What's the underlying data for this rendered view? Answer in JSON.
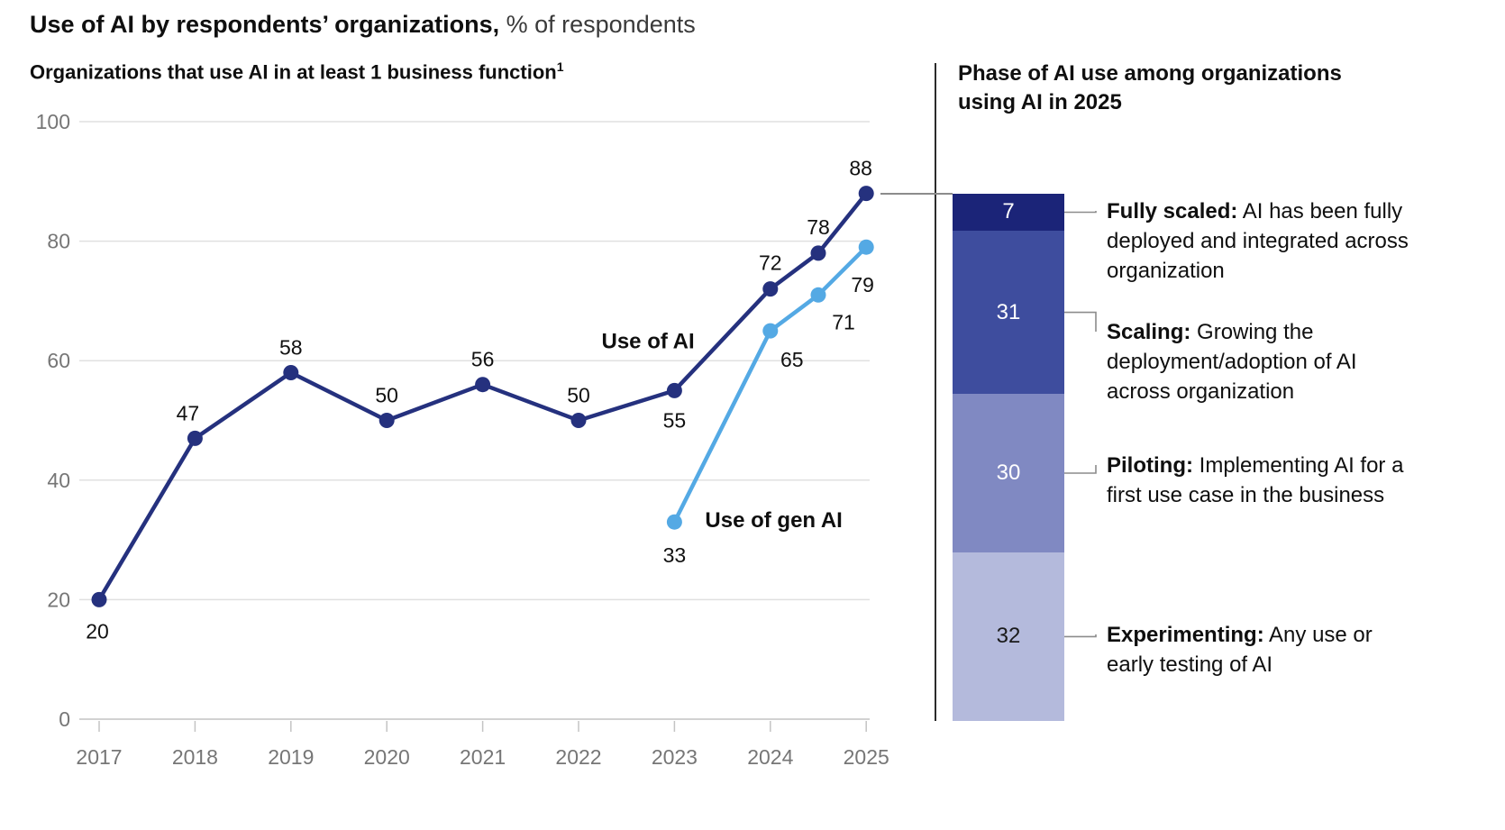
{
  "page": {
    "title_bold": "Use of AI by respondents’ organizations,",
    "title_regular": " % of respondents"
  },
  "line_section": {
    "subtitle": "Organizations that use AI in at least 1 business function",
    "subtitle_superscript": "1"
  },
  "phase_section": {
    "heading": "Phase of AI use among organizations using AI in 2025"
  },
  "chart_data": {
    "type": "line",
    "title": "Use of AI by respondents’ organizations, % of respondents",
    "subtitle": "Organizations that use AI in at least 1 business function",
    "x_ticks": [
      2017,
      2018,
      2019,
      2020,
      2021,
      2022,
      2023,
      2024,
      2025
    ],
    "y_ticks": [
      0,
      20,
      40,
      60,
      80,
      100
    ],
    "ylim": [
      0,
      100
    ],
    "grid": "horizontal",
    "legend_position": "inline-annotations",
    "series": [
      {
        "name": "Use of AI",
        "color": "#25317E",
        "points": [
          {
            "x": 2017,
            "v": 20,
            "dx": -2,
            "dy": 43
          },
          {
            "x": 2018,
            "v": 47,
            "dx": -8,
            "dy": -20
          },
          {
            "x": 2019,
            "v": 58,
            "dx": 0,
            "dy": -20
          },
          {
            "x": 2020,
            "v": 50,
            "dx": 0,
            "dy": -20
          },
          {
            "x": 2021,
            "v": 56,
            "dx": 0,
            "dy": -20
          },
          {
            "x": 2022,
            "v": 50,
            "dx": 0,
            "dy": -20
          },
          {
            "x": 2023,
            "v": 55,
            "dx": 0,
            "dy": 41
          },
          {
            "x": 2024,
            "v": 72,
            "dx": 0,
            "dy": -21
          },
          {
            "x": 2024.5,
            "v": 78,
            "dx": 0,
            "dy": -21
          },
          {
            "x": 2025,
            "v": 88,
            "dx": -6,
            "dy": -20
          }
        ]
      },
      {
        "name": "Use of gen AI",
        "color": "#54A9E4",
        "points": [
          {
            "x": 2023,
            "v": 33,
            "dx": 0,
            "dy": 45
          },
          {
            "x": 2024,
            "v": 65,
            "dx": 24,
            "dy": 40
          },
          {
            "x": 2024.5,
            "v": 71,
            "dx": 28,
            "dy": 38
          },
          {
            "x": 2025,
            "v": 79,
            "dx": -4,
            "dy": 50
          }
        ]
      }
    ],
    "annotations": [
      {
        "text": "Use of AI",
        "x": 2022.24,
        "y": 62.1
      },
      {
        "text": "Use of gen AI",
        "x": 2023.32,
        "y": 32.1
      }
    ],
    "stacked_bar": {
      "title": "Phase of AI use among organizations using AI in 2025",
      "total": 100,
      "segments": [
        {
          "value": 7,
          "phase": "Fully scaled",
          "term": "Fully scaled:",
          "description": " AI has been fully deployed and integrated across organization",
          "color": "#1B2478",
          "text_color": "#FFFFFF"
        },
        {
          "value": 31,
          "phase": "Scaling",
          "term": "Scaling:",
          "description": " Growing the deployment/adoption of AI across organization",
          "color": "#3E4D9E",
          "text_color": "#FFFFFF"
        },
        {
          "value": 30,
          "phase": "Piloting",
          "term": "Piloting:",
          "description": " Implementing AI for a first use case in the business",
          "color": "#8089C2",
          "text_color": "#FFFFFF"
        },
        {
          "value": 32,
          "phase": "Experimenting",
          "term": "Experimenting:",
          "description": " Any use or early testing of AI",
          "color": "#B4BADC",
          "text_color": "#1A1A1A"
        }
      ]
    }
  }
}
